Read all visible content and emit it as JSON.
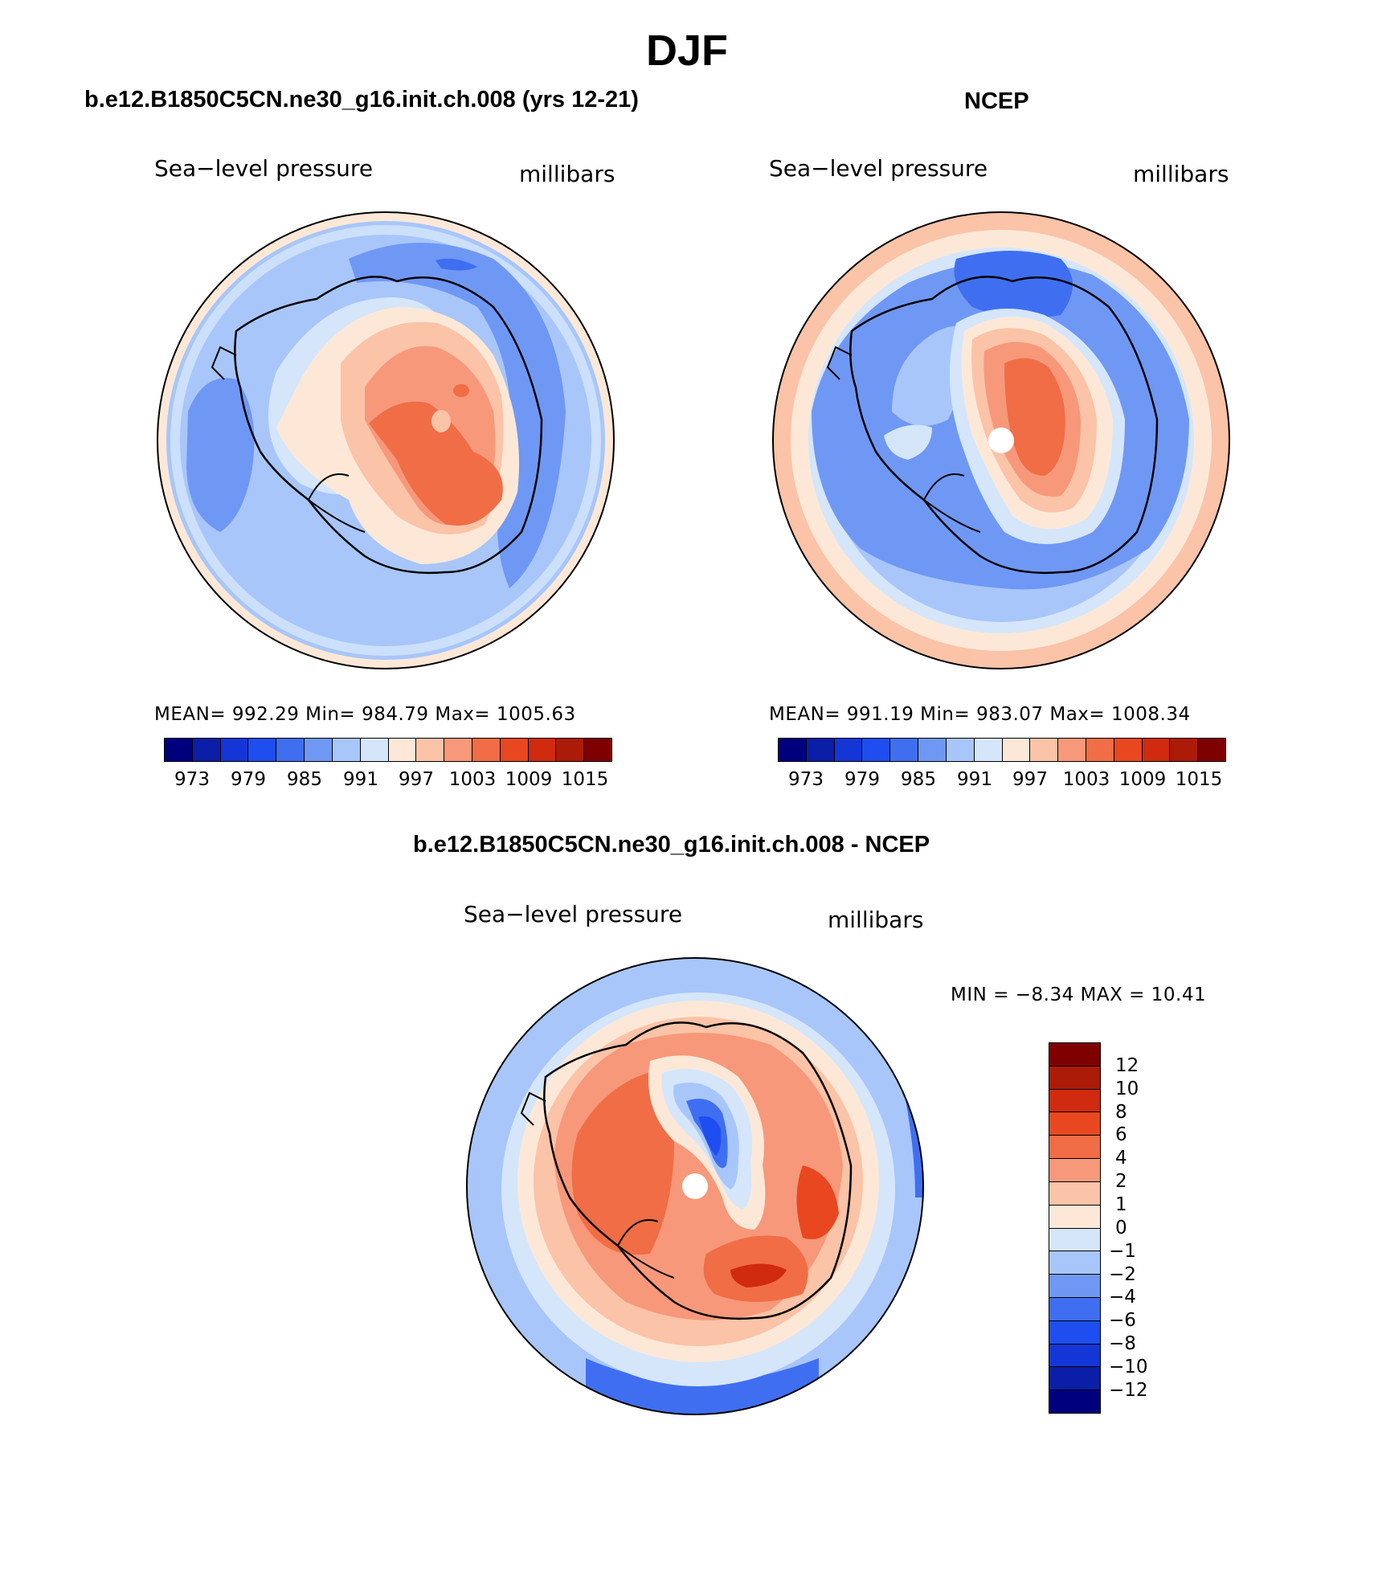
{
  "figure": {
    "title": "DJF"
  },
  "palette": {
    "abs_colors": [
      "#00007f",
      "#0a1ea8",
      "#1536d6",
      "#1e4ef0",
      "#3f6ff0",
      "#6f98f5",
      "#a8c6fa",
      "#d5e6fb",
      "#fde8d8",
      "#fbc3a7",
      "#f7987a",
      "#f06d46",
      "#e94720",
      "#d02a0f",
      "#ac1a08",
      "#7f0000"
    ],
    "diff_colors": [
      "#7f0000",
      "#ac1a08",
      "#d02a0f",
      "#e94720",
      "#f06d46",
      "#f7987a",
      "#fbc3a7",
      "#fde8d8",
      "#d5e6fb",
      "#a8c6fa",
      "#6f98f5",
      "#3f6ff0",
      "#1e4ef0",
      "#1536d6",
      "#0a1ea8",
      "#00007f"
    ]
  },
  "panels": [
    {
      "title": "b.e12.B1850C5CN.ne30_g16.init.ch.008 (yrs 12-21)",
      "variable": "Sea−level pressure",
      "units": "millibars",
      "stats": "MEAN=  992.29    Min=  984.79    Max=  1005.63",
      "colorbar_labels": [
        "973",
        "979",
        "985",
        "991",
        "997",
        "1003",
        "1009",
        "1015"
      ]
    },
    {
      "title": "NCEP",
      "variable": "Sea−level pressure",
      "units": "millibars",
      "stats": "MEAN=  991.19    Min=  983.07    Max=  1008.34",
      "colorbar_labels": [
        "973",
        "979",
        "985",
        "991",
        "997",
        "1003",
        "1009",
        "1015"
      ]
    },
    {
      "title": "b.e12.B1850C5CN.ne30_g16.init.ch.008 - NCEP",
      "variable": "Sea−level pressure",
      "units": "millibars",
      "stats": "MIN =    −8.34  MAX =    10.41",
      "colorbar_labels": [
        "12",
        "10",
        "8",
        "6",
        "4",
        "2",
        "1",
        "0",
        "−1",
        "−2",
        "−4",
        "−6",
        "−8",
        "−10",
        "−12"
      ]
    }
  ]
}
